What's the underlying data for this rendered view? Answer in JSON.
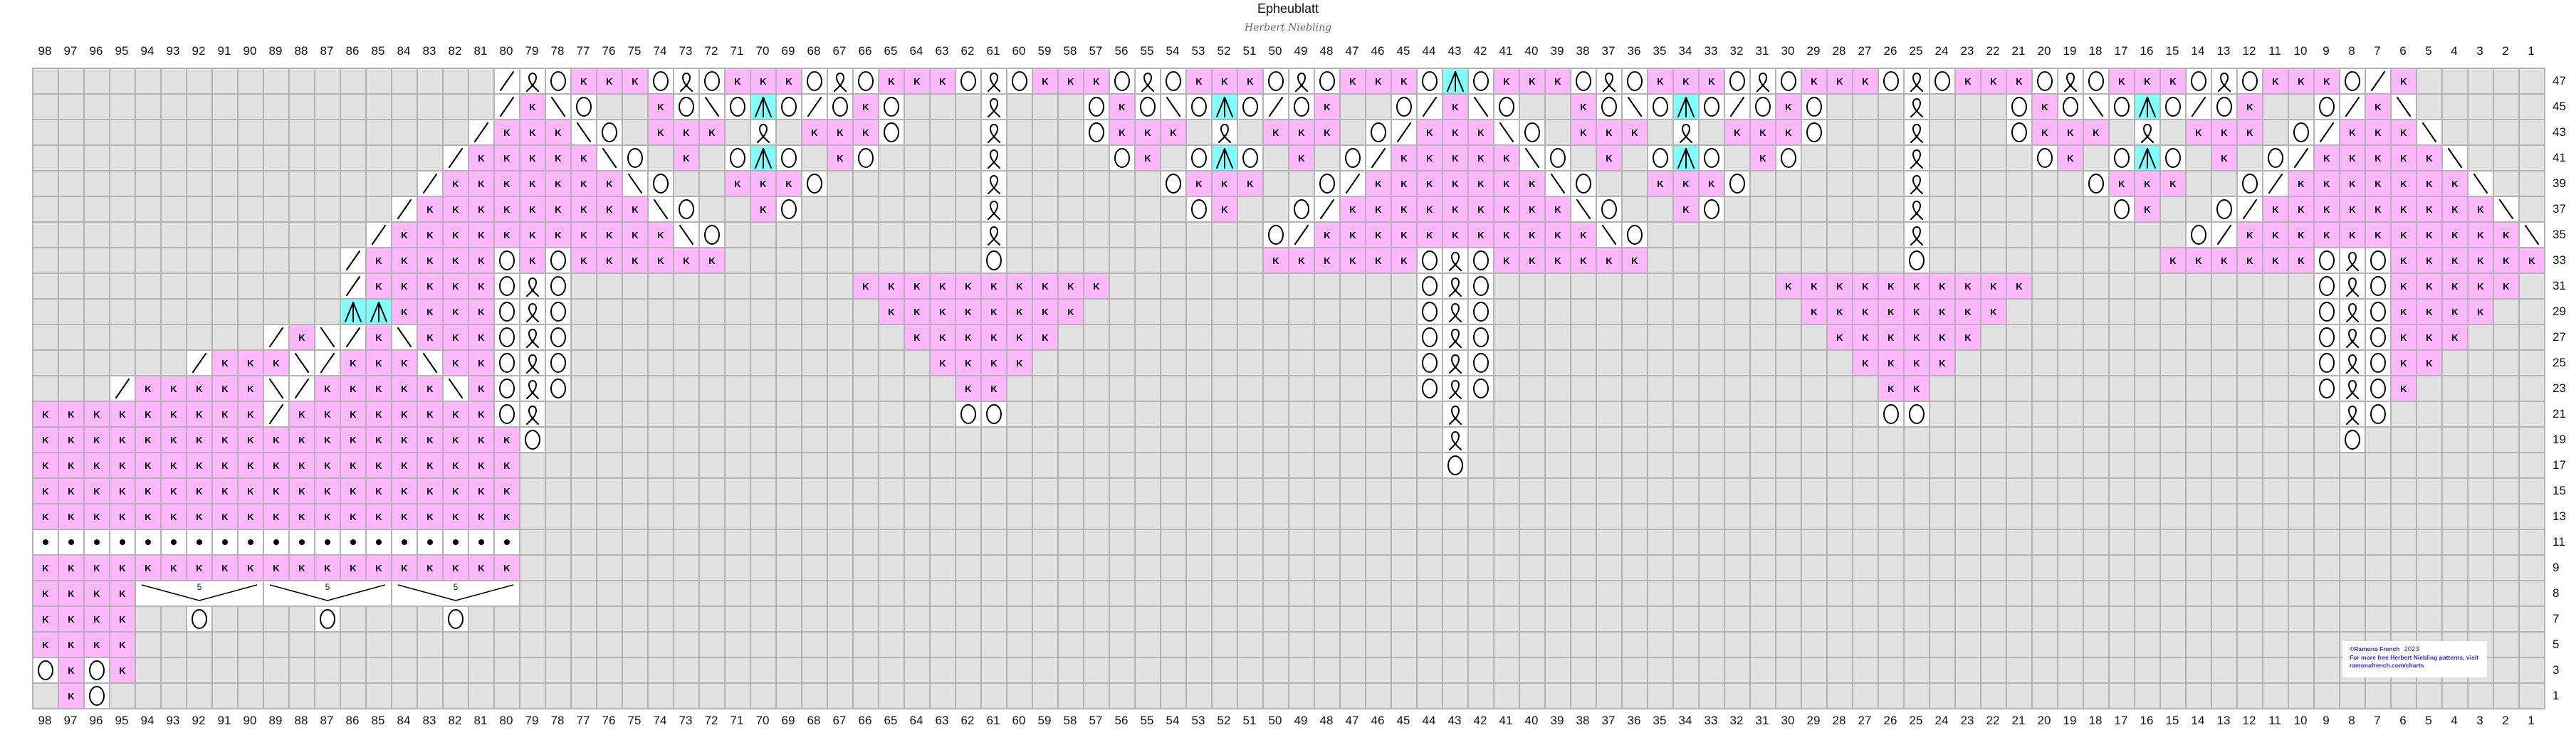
{
  "title": "Epheublatt",
  "subtitle": "Herbert Niebling",
  "colors": {
    "grid_line": "#b3b3b3",
    "no_stitch": "#e2e2e2",
    "knit": "#ffb8ff",
    "triple_decrease": "#80ffff",
    "plain": "#ffffff",
    "credit_text": "#2b2bd6"
  },
  "symbols": {
    ".": "no-stitch",
    "k": "knit",
    "o": "yarn-over",
    "q": "twisted-loop",
    "s": "right-leaning-decrease",
    "b": "left-leaning-decrease",
    "A": "triple-decrease",
    "p": "purl",
    "g": "decrease-bracket"
  },
  "knit_glyph": "K",
  "bracket_label": "5",
  "column_labels": [
    "98",
    "97",
    "96",
    "95",
    "94",
    "93",
    "92",
    "91",
    "90",
    "89",
    "88",
    "87",
    "86",
    "85",
    "84",
    "83",
    "82",
    "81",
    "80",
    "79",
    "78",
    "77",
    "76",
    "75",
    "74",
    "73",
    "72",
    "71",
    "70",
    "69",
    "68",
    "67",
    "66",
    "65",
    "64",
    "63",
    "62",
    "61",
    "60",
    "59",
    "58",
    "57",
    "56",
    "55",
    "54",
    "53",
    "52",
    "51",
    "50",
    "49",
    "48",
    "47",
    "46",
    "45",
    "44",
    "43",
    "42",
    "41",
    "40",
    "39",
    "38",
    "37",
    "36",
    "35",
    "34",
    "33",
    "32",
    "31",
    "30",
    "29",
    "28",
    "27",
    "26",
    "25",
    "24",
    "23",
    "22",
    "21",
    "20",
    "19",
    "18",
    "17",
    "16",
    "15",
    "14",
    "13",
    "12",
    "11",
    "10",
    "9",
    "8",
    "7",
    "6",
    "5",
    "4",
    "3",
    "2",
    "1"
  ],
  "rows": [
    {
      "label": "47",
      "stitches": [
        "..................sq",
        "okkkoqokkkoqokkkoqok",
        "kkoqokkkoqokkkoAokkk",
        "oqokkkoqokkkoqokkkoq",
        "okkkoqokkkosk....."
      ]
    },
    {
      "label": "45",
      "stitches": [
        "..................sk",
        "bo..koboAosoko...q..",
        ".okoboAosok..oskbo..",
        "koboAosoko...q...oko",
        "boAosok..oskb....."
      ]
    },
    {
      "label": "43",
      "stitches": [
        ".................skk",
        "kbo.kkk.q.kkko...q..",
        ".okkk.q.kkk.oskkkbo.",
        "kkk.q.kkko...q...okk",
        "k.q.kkk.oskkkb...."
      ]
    },
    {
      "label": "41",
      "stitches": [
        "................skkk",
        "kkbo.k.oAo.ko....q..",
        "..ok.oAo.k.oskkkkkbo",
        ".k.oAo.ko....q....ok",
        ".oAo.k.oskkkkkb..."
      ]
    },
    {
      "label": "39",
      "stitches": [
        "...............skkkk",
        "kkkbo..kkko......q..",
        "....okkk..oskkkkkkkb",
        "o..kkko......q......",
        "okkk..oskkkkkkkb.."
      ]
    },
    {
      "label": "37",
      "stitches": [
        "..............skkkkk",
        "kkkkbo..ko.......q..",
        ".....ok..oskkkkkkkkk",
        "bo..ko.......q......",
        ".ok..oskkkkkkkkkb."
      ]
    },
    {
      "label": "35",
      "stitches": [
        ".............skkkkkk",
        "kkkkkbo..........q..",
        "........oskkkkkkkkkk",
        "kbo..........q......",
        "....oskkkkkkkkkkkb"
      ]
    },
    {
      "label": "33",
      "stitches": [
        "............skkkkkok",
        "okkkkkk..........o..",
        "........kkkkkkoqokkk",
        "kkk..........o......",
        "...kkkkkkoqokkkkkk"
      ]
    },
    {
      "label": "31",
      "stitches": [
        "............skkkkkoq",
        "o...........kkkkkkkk",
        "kk............oqo...",
        "........kkkkkkkkkk..",
        ".........oqokkkkk."
      ]
    },
    {
      "label": "29",
      "stitches": [
        "............AAkkkkoq",
        "o............kkkkkkk",
        "k.............oqo...",
        ".........kkkkkkkk...",
        ".........oqokkkk.."
      ]
    },
    {
      "label": "27",
      "stitches": [
        ".........skbskbkkkoq",
        "o.............kkkkkk",
        "..............oqo...",
        "..........kkkkkk....",
        ".........oqokkk..."
      ]
    },
    {
      "label": "25",
      "stitches": [
        "......skkkbskkkbkkoq",
        "o..............kkkk.",
        "..............oqo...",
        "...........kkkk.....",
        ".........oqokk...."
      ]
    },
    {
      "label": "23",
      "stitches": [
        "...skkkkkbskkkkkbkoq",
        "o...............kk..",
        "..............oqo...",
        "............kk......",
        ".........oqok....."
      ]
    },
    {
      "label": "21",
      "stitches": [
        "kkkkkkkkkskkkkkkkkoq",
        "................oo..",
        "...............q....",
        "............oo......",
        "..........qo......"
      ]
    },
    {
      "label": "19",
      "stitches": [
        "kkkkkkkkkkkkkkkkkkko",
        "....................",
        "...............q....",
        "....................",
        "..........o......."
      ]
    },
    {
      "label": "17",
      "stitches": [
        "kkkkkkkkkkkkkkkkkkk.",
        "....................",
        "...............o...."
      ]
    },
    {
      "label": "15",
      "stitches": [
        "kkkkkkkkkkkkkkkkkkk."
      ]
    },
    {
      "label": "13",
      "stitches": [
        "kkkkkkkkkkkkkkkkkkk."
      ]
    },
    {
      "label": "11",
      "stitches": [
        "ppppppppppppppppppp."
      ]
    },
    {
      "label": "9",
      "stitches": [
        "kkkkkkkkkkkkkkkkkkk."
      ]
    },
    {
      "label": "8",
      "stitches": [
        "kkkkggggggggggggggg."
      ]
    },
    {
      "label": "7",
      "stitches": [
        "kkkk..o....o....o..."
      ]
    },
    {
      "label": "5",
      "stitches": [
        "kkkk"
      ]
    },
    {
      "label": "3",
      "stitches": [
        "okok"
      ]
    },
    {
      "label": "1",
      "stitches": [
        ".ko"
      ]
    }
  ],
  "credit": {
    "line1": "©Ramona French",
    "year": "2023",
    "line2": "For more free Herbert Niebling patterns, visit",
    "line3": "ramonafrench.com/charts"
  }
}
